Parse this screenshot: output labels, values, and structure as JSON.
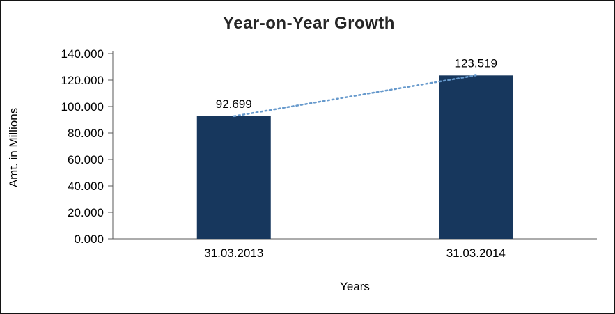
{
  "chart_data": {
    "type": "bar",
    "title": "Year-on-Year Growth",
    "xlabel": "Years",
    "ylabel": "Amt. in Millions",
    "categories": [
      "31.03.2013",
      "31.03.2014"
    ],
    "values": [
      92.699,
      123.519
    ],
    "data_labels": [
      "92.699",
      "123.519"
    ],
    "ylim": [
      0,
      140
    ],
    "ytick_step": 20,
    "ytick_labels": [
      "0.000",
      "20.000",
      "40.000",
      "60.000",
      "80.000",
      "100.000",
      "120.000",
      "140.000"
    ],
    "bar_color": "#17375D",
    "trendline_color": "#6699CC",
    "axis_color": "#595959",
    "grid": false,
    "legend_position": "none",
    "trendline_style": "dotted"
  }
}
